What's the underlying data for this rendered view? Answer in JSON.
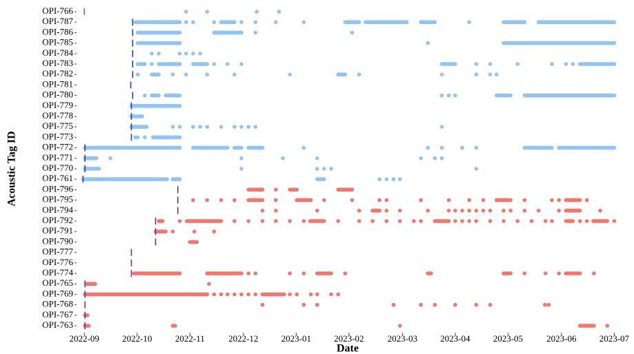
{
  "chart_data": {
    "type": "abacus",
    "xlabel": "Date",
    "ylabel": "Acoustic Tag ID",
    "xlim": [
      2022.657,
      2023.505
    ],
    "xticks": [
      {
        "value": 2022.667,
        "label": "2022-09"
      },
      {
        "value": 2022.75,
        "label": "2022-10"
      },
      {
        "value": 2022.833,
        "label": "2022-11"
      },
      {
        "value": 2022.917,
        "label": "2022-12"
      },
      {
        "value": 2023.0,
        "label": "2023-01"
      },
      {
        "value": 2023.083,
        "label": "2023-02"
      },
      {
        "value": 2023.167,
        "label": "2023-03"
      },
      {
        "value": 2023.25,
        "label": "2023-04"
      },
      {
        "value": 2023.333,
        "label": "2023-05"
      },
      {
        "value": 2023.417,
        "label": "2023-06"
      },
      {
        "value": 2023.5,
        "label": "2023-07"
      }
    ],
    "series": [
      {
        "name": "OPI-766",
        "color": "#90c4f5",
        "release_color": "#8a5cf5",
        "release": 2022.667,
        "runs": [],
        "points": [
          2022.827,
          2022.86,
          2022.938,
          2022.973
        ]
      },
      {
        "name": "OPI-787",
        "color": "#90c4f5",
        "release_color": "#1f3fbf",
        "release": 2022.743,
        "runs": [
          [
            2022.747,
            2022.817
          ],
          [
            2022.882,
            2022.903
          ],
          [
            2023.077,
            2023.099
          ],
          [
            2023.109,
            2023.174
          ],
          [
            2023.196,
            2023.218
          ],
          [
            2023.326,
            2023.359
          ],
          [
            2023.381,
            2023.5
          ]
        ],
        "points": [
          2022.827,
          2022.838,
          2022.871,
          2022.914,
          2022.936,
          2022.968,
          2023.012,
          2023.272
        ]
      },
      {
        "name": "OPI-786",
        "color": "#90c4f5",
        "release_color": "#1f3fbf",
        "release": 2022.743,
        "runs": [
          [
            2022.751,
            2022.817
          ],
          [
            2022.871,
            2022.914
          ]
        ],
        "points": [
          2022.936,
          2023.088
        ]
      },
      {
        "name": "OPI-785",
        "color": "#90c4f5",
        "release_color": "#1f3fbf",
        "release": 2022.743,
        "runs": [
          [
            2022.751,
            2022.817
          ],
          [
            2023.326,
            2023.5
          ]
        ],
        "points": [
          2023.207
        ]
      },
      {
        "name": "OPI-784",
        "color": "#90c4f5",
        "release_color": "#1f3fbf",
        "release": 2022.743,
        "runs": [],
        "points": [
          2022.773,
          2022.784,
          2022.817,
          2022.827,
          2022.838,
          2022.849
        ]
      },
      {
        "name": "OPI-783",
        "color": "#90c4f5",
        "release_color": "#1f3fbf",
        "release": 2022.743,
        "runs": [
          [
            2022.751,
            2022.762
          ],
          [
            2022.784,
            2022.817
          ],
          [
            2022.838,
            2022.86
          ],
          [
            2023.229,
            2023.25
          ],
          [
            2023.446,
            2023.5
          ]
        ],
        "points": [
          2022.773,
          2022.871,
          2022.892,
          2022.914,
          2023.283,
          2023.305,
          2023.348,
          2023.402,
          2023.424,
          2023.435
        ]
      },
      {
        "name": "OPI-782",
        "color": "#90c4f5",
        "release_color": "#1f3fbf",
        "release": 2022.743,
        "runs": [
          [
            2022.773,
            2022.784
          ],
          [
            2023.066,
            2023.077
          ]
        ],
        "points": [
          2022.751,
          2022.806,
          2022.827,
          2022.86,
          2022.903,
          2022.99,
          2023.099,
          2023.229,
          2023.283,
          2023.305,
          2023.315
        ]
      },
      {
        "name": "OPI-781",
        "color": "#90c4f5",
        "release_color": "#1f3fbf",
        "release": 2022.74,
        "runs": [],
        "points": []
      },
      {
        "name": "OPI-780",
        "color": "#90c4f5",
        "release_color": "#1f3fbf",
        "release": 2022.743,
        "runs": [
          [
            2022.773,
            2022.784
          ],
          [
            2022.795,
            2022.817
          ],
          [
            2023.315,
            2023.337
          ],
          [
            2023.359,
            2023.5
          ]
        ],
        "points": [
          2022.762,
          2023.229,
          2023.24,
          2023.25
        ]
      },
      {
        "name": "OPI-779",
        "color": "#90c4f5",
        "release_color": "#1f3fbf",
        "release": 2022.741,
        "runs": [
          [
            2022.741,
            2022.817
          ]
        ],
        "points": []
      },
      {
        "name": "OPI-778",
        "color": "#90c4f5",
        "release_color": "#1f3fbf",
        "release": 2022.741,
        "runs": [
          [
            2022.741,
            2022.758
          ]
        ],
        "points": []
      },
      {
        "name": "OPI-775",
        "color": "#90c4f5",
        "release_color": "#1f3fbf",
        "release": 2022.741,
        "runs": [
          [
            2022.741,
            2022.765
          ]
        ],
        "points": [
          2022.806,
          2022.817,
          2022.838,
          2022.849,
          2022.86,
          2022.882,
          2022.903,
          2022.914,
          2022.925,
          2022.936,
          2023.229
        ]
      },
      {
        "name": "OPI-773",
        "color": "#90c4f5",
        "release_color": "#1f3fbf",
        "release": 2022.741,
        "runs": [
          [
            2022.775,
            2022.817
          ]
        ],
        "points": [
          2022.747,
          2022.751,
          2022.762
        ]
      },
      {
        "name": "OPI-772",
        "color": "#90c4f5",
        "release_color": "#1f3fbf",
        "release": 2022.668,
        "runs": [
          [
            2022.668,
            2022.817
          ],
          [
            2022.838,
            2022.892
          ],
          [
            2022.903,
            2022.914
          ],
          [
            2022.925,
            2022.947
          ],
          [
            2023.359,
            2023.402
          ],
          [
            2023.413,
            2023.5
          ]
        ],
        "points": [
          2023.012,
          2023.207,
          2023.229,
          2023.261,
          2023.283
        ]
      },
      {
        "name": "OPI-771",
        "color": "#90c4f5",
        "release_color": "#1f3fbf",
        "release": 2022.668,
        "runs": [
          [
            2022.668,
            2022.686
          ]
        ],
        "points": [
          2022.708,
          2022.914,
          2022.979,
          2023.033,
          2023.196,
          2023.218,
          2023.229
        ]
      },
      {
        "name": "OPI-770",
        "color": "#90c4f5",
        "release_color": "#1f3fbf",
        "release": 2022.668,
        "runs": [
          [
            2022.668,
            2022.69
          ]
        ],
        "points": [
          2022.914,
          2023.033,
          2023.044,
          2023.055,
          2023.283
        ]
      },
      {
        "name": "OPI-761",
        "color": "#90c4f5",
        "release_color": "#1f3fbf",
        "release": 2022.665,
        "runs": [
          [
            2022.665,
            2022.797
          ],
          [
            2022.806,
            2022.817
          ],
          [
            2023.033,
            2023.044
          ]
        ],
        "points": [
          2023.131,
          2023.142,
          2023.153,
          2023.163
        ]
      },
      {
        "name": "OPI-796",
        "color": "#f5756b",
        "release_color": "#7b2d8e",
        "release": 2022.814,
        "runs": [
          [
            2022.925,
            2022.947
          ],
          [
            2022.99,
            2023.001
          ],
          [
            2023.066,
            2023.088
          ]
        ],
        "points": [
          2022.968
        ]
      },
      {
        "name": "OPI-795",
        "color": "#f5756b",
        "release_color": "#7b2d8e",
        "release": 2022.814,
        "runs": [
          [
            2022.925,
            2022.947
          ],
          [
            2023.001,
            2023.023
          ],
          [
            2023.315,
            2023.337
          ],
          [
            2023.424,
            2023.446
          ]
        ],
        "points": [
          2022.838,
          2022.86,
          2022.882,
          2022.903,
          2022.968,
          2023.044,
          2023.088,
          2023.131,
          2023.142,
          2023.196,
          2023.24,
          2023.272,
          2023.294,
          2023.359,
          2023.402,
          2023.413,
          2023.457
        ]
      },
      {
        "name": "OPI-794",
        "color": "#f5756b",
        "release_color": "#7b2d8e",
        "release": 2022.814,
        "runs": [
          [
            2023.12,
            2023.131
          ],
          [
            2023.424,
            2023.446
          ]
        ],
        "points": [
          2022.947,
          2022.968,
          2023.033,
          2023.099,
          2023.142,
          2023.163,
          2023.207,
          2023.24,
          2023.25,
          2023.261,
          2023.272,
          2023.283,
          2023.294,
          2023.305,
          2023.326,
          2023.337,
          2023.359,
          2023.381,
          2023.413,
          2023.478
        ]
      },
      {
        "name": "OPI-792",
        "color": "#f5756b",
        "release_color": "#7b2d8e",
        "release": 2022.779,
        "runs": [
          [
            2022.784,
            2022.79
          ],
          [
            2022.828,
            2022.882
          ],
          [
            2023.022,
            2023.044
          ],
          [
            2023.218,
            2023.24
          ],
          [
            2023.424,
            2023.435
          ],
          [
            2023.467,
            2023.489
          ]
        ],
        "points": [
          2022.817,
          2022.903,
          2022.925,
          2022.947,
          2022.968,
          2022.99,
          2023.012,
          2023.066,
          2023.099,
          2023.12,
          2023.142,
          2023.163,
          2023.185,
          2023.196,
          2023.25,
          2023.261,
          2023.272,
          2023.283,
          2023.305,
          2023.326,
          2023.348,
          2023.37,
          2023.392,
          2023.402,
          2023.446,
          2023.457,
          2023.5
        ]
      },
      {
        "name": "OPI-791",
        "color": "#f5756b",
        "release_color": "#7b2d8e",
        "release": 2022.779,
        "runs": [
          [
            2022.779,
            2022.795
          ]
        ],
        "points": [
          2022.806,
          2022.84,
          2022.871
        ]
      },
      {
        "name": "OPI-790",
        "color": "#f5756b",
        "release_color": "#7b2d8e",
        "release": 2022.779,
        "runs": [
          [
            2022.833,
            2022.844
          ]
        ],
        "points": []
      },
      {
        "name": "OPI-777",
        "color": "#f5756b",
        "release_color": "#7b2d8e",
        "release": 2022.741,
        "runs": [],
        "points": []
      },
      {
        "name": "OPI-776",
        "color": "#f5756b",
        "release_color": "#7b2d8e",
        "release": 2022.741,
        "runs": [],
        "points": []
      },
      {
        "name": "OPI-774",
        "color": "#f5756b",
        "release_color": "#7b2d8e",
        "release": 2022.741,
        "runs": [
          [
            2022.745,
            2022.817
          ],
          [
            2022.86,
            2022.914
          ],
          [
            2023.033,
            2023.055
          ],
          [
            2023.207,
            2023.212
          ],
          [
            2023.326,
            2023.337
          ],
          [
            2023.424,
            2023.446
          ]
        ],
        "points": [
          2022.925,
          2022.936,
          2022.99,
          2023.012,
          2023.077,
          2023.359,
          2023.392,
          2023.413,
          2023.468
        ]
      },
      {
        "name": "OPI-765",
        "color": "#f5756b",
        "release_color": "#7b2d8e",
        "release": 2022.668,
        "runs": [
          [
            2022.67,
            2022.684
          ]
        ],
        "points": [
          2022.863
        ]
      },
      {
        "name": "OPI-769",
        "color": "#f5756b",
        "release_color": "#7b2d8e",
        "release": 2022.668,
        "runs": [
          [
            2022.668,
            2022.86
          ],
          [
            2022.947,
            2022.981
          ]
        ],
        "points": [
          2022.871,
          2022.882,
          2022.892,
          2022.903,
          2022.914,
          2022.925,
          2022.936,
          2022.99,
          2023.001,
          2023.023,
          2023.033,
          2023.055,
          2023.066
        ]
      },
      {
        "name": "OPI-768",
        "color": "#f5756b",
        "release_color": "#7b2d8e",
        "release": 2022.668,
        "runs": [],
        "points": [
          2022.947,
          2023.012,
          2023.033,
          2023.153,
          2023.196,
          2023.218,
          2023.25,
          2023.283,
          2023.305,
          2023.391,
          2023.397
        ]
      },
      {
        "name": "OPI-767",
        "color": "#f5756b",
        "release_color": "#7b2d8e",
        "release": 2022.668,
        "runs": [
          [
            2022.668,
            2022.672
          ]
        ],
        "points": []
      },
      {
        "name": "OPI-763",
        "color": "#f5756b",
        "release_color": "#7b2d8e",
        "release": 2022.668,
        "runs": [
          [
            2022.668,
            2022.674
          ],
          [
            2022.806,
            2022.81
          ],
          [
            2023.446,
            2023.468
          ]
        ],
        "points": [
          2023.163,
          2023.489
        ]
      }
    ]
  }
}
